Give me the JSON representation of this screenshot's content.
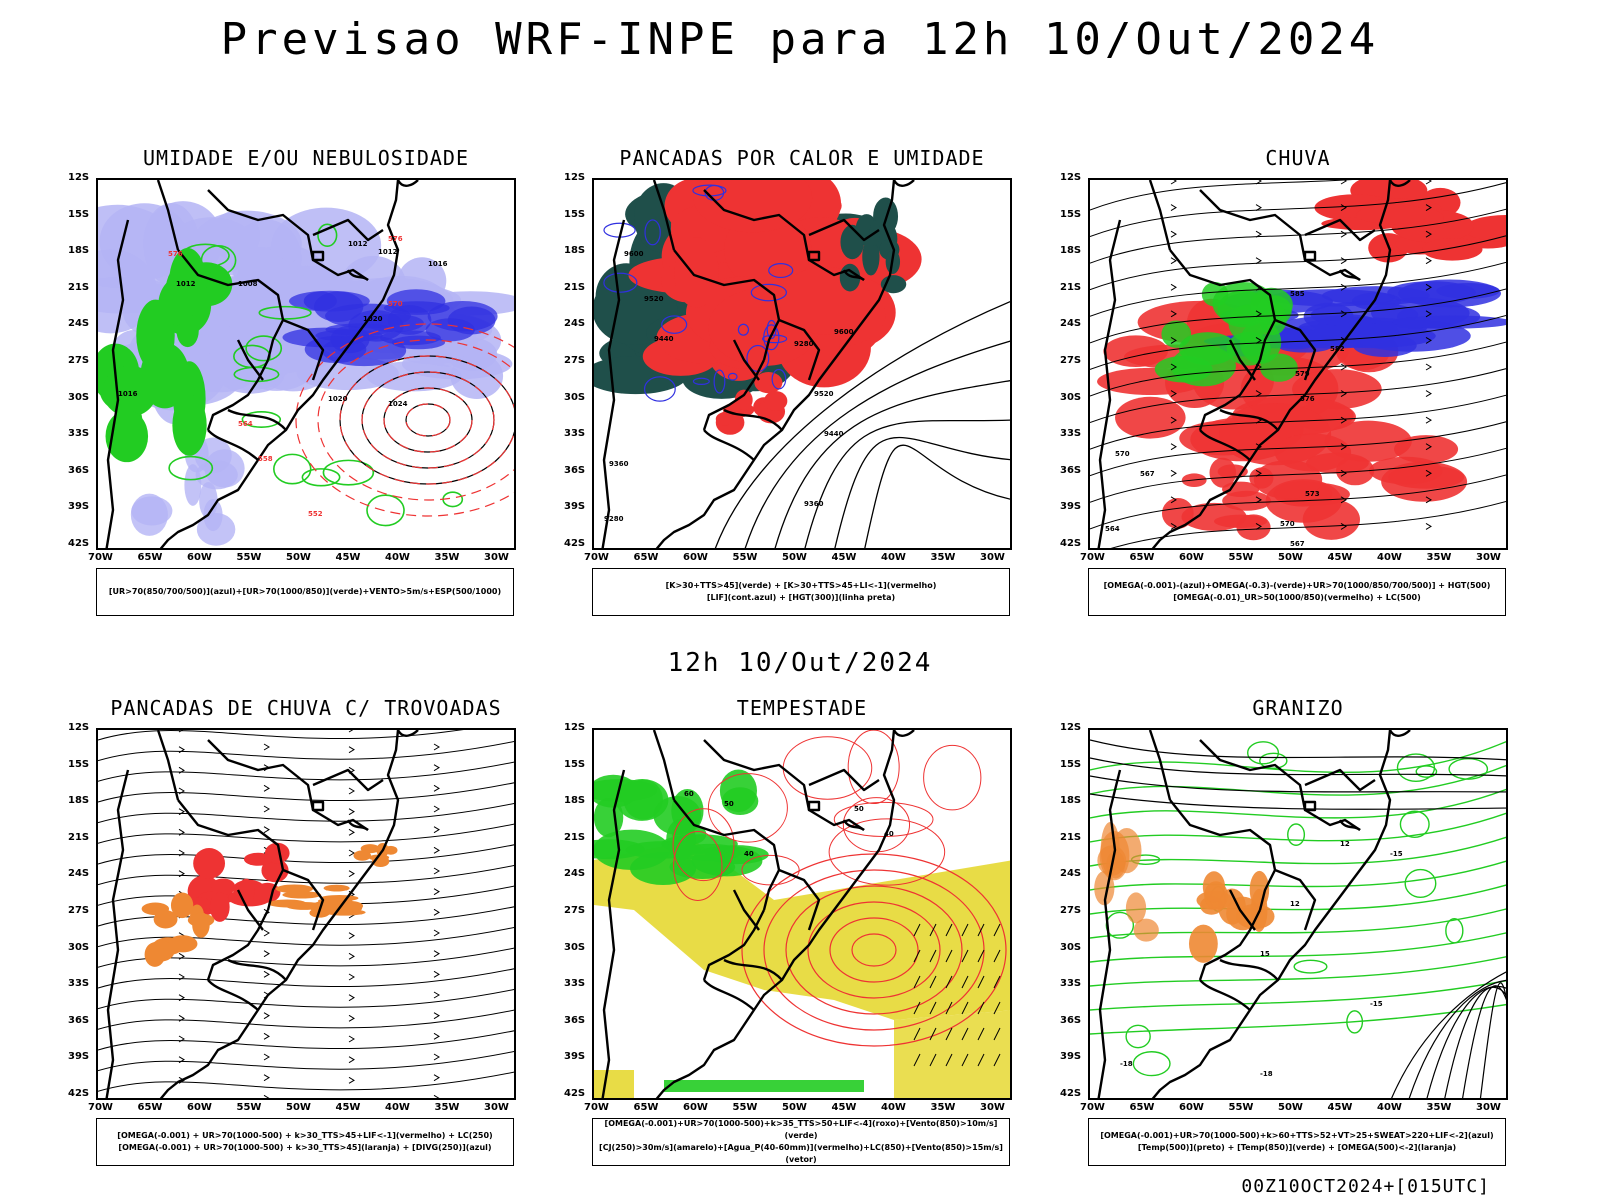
{
  "title": "Previsao WRF-INPE  para 12h 10/Out/2024",
  "subtitle": "12h 10/Out/2024",
  "footer": "00Z10OCT2024+[015UTC]",
  "y_ticks": [
    "12S",
    "15S",
    "18S",
    "21S",
    "24S",
    "27S",
    "30S",
    "33S",
    "36S",
    "39S",
    "42S"
  ],
  "x_ticks": [
    "70W",
    "65W",
    "60W",
    "55W",
    "50W",
    "45W",
    "40W",
    "35W",
    "30W"
  ],
  "panels": [
    {
      "title": "UMIDADE E/OU NEBULOSIDADE",
      "legend": [
        "[UR>70(850/700/500)](azul)+[UR>70(1000/850)](verde)+VENTO>5m/s+ESP(500/1000)"
      ],
      "labels": [
        "1016",
        "1012",
        "1008",
        "1012",
        "1020",
        "1024",
        "1016",
        "1012",
        "1020",
        "576",
        "570",
        "564",
        "558",
        "552",
        "576"
      ]
    },
    {
      "title": "PANCADAS POR CALOR E UMIDADE",
      "legend": [
        "[K>30+TTS>45](verde) + [K>30+TTS>45+LI<-1](vermelho)",
        "[LIF](cont.azul) + [HGT(300)](linha preta)"
      ],
      "labels": [
        "9600",
        "9520",
        "9440",
        "9360",
        "9280",
        "9600",
        "9520",
        "9440",
        "9360",
        "9280"
      ]
    },
    {
      "title": "CHUVA",
      "legend": [
        "[OMEGA(-0.001)-(azul)+OMEGA(-0.3)-(verde)+UR>70(1000/850/700/500)] + HGT(500)",
        "[OMEGA(-0.01)_UR>50(1000/850)(vermelho) + LC(500)"
      ],
      "labels": [
        "585",
        "582",
        "579",
        "576",
        "573",
        "570",
        "567",
        "564",
        "570",
        "567"
      ]
    },
    {
      "title": "PANCADAS DE CHUVA C/ TROVOADAS",
      "legend": [
        "[OMEGA(-0.001) + UR>70(1000-500) + k>30_TTS>45+LIF<-1](vermelho) + LC(250)",
        "[OMEGA(-0.001) + UR>70(1000-500) + k>30_TTS>45](laranja) + [DIVG(250)](azul)"
      ],
      "labels": []
    },
    {
      "title": "TEMPESTADE",
      "legend": [
        "[OMEGA(-0.001)+UR>70(1000-500)+k>35_TTS>50+LIF<-4](roxo)+[Vento(850)>10m/s](verde)",
        "[CJ(250)>30m/s](amarelo)+[Agua_P(40-60mm)](vermelho)+LC(850)+[Vento(850)>15m/s](vetor)"
      ],
      "labels": [
        "60",
        "50",
        "40",
        "50",
        "40"
      ]
    },
    {
      "title": "GRANIZO",
      "legend": [
        "[OMEGA(-0.001)+UR>70(1000-500)+k>60+TTS>52+VT>25+SWEAT>220+LIF<-2](azul)",
        "[Temp(500)](preto) + [Temp(850)](verde) + [OMEGA(500)<-2](laranja)"
      ],
      "labels": [
        "12",
        "15",
        "-15",
        "-18",
        "-18",
        "-15",
        "12"
      ]
    }
  ],
  "colors": {
    "blue_light": "#b4b4f5",
    "blue_dark": "#3030e0",
    "green": "#22cc22",
    "red": "#ee3333",
    "dark_teal": "#1f4f4a",
    "orange": "#ee8833",
    "yellow": "#e6d832",
    "black": "#000000"
  }
}
